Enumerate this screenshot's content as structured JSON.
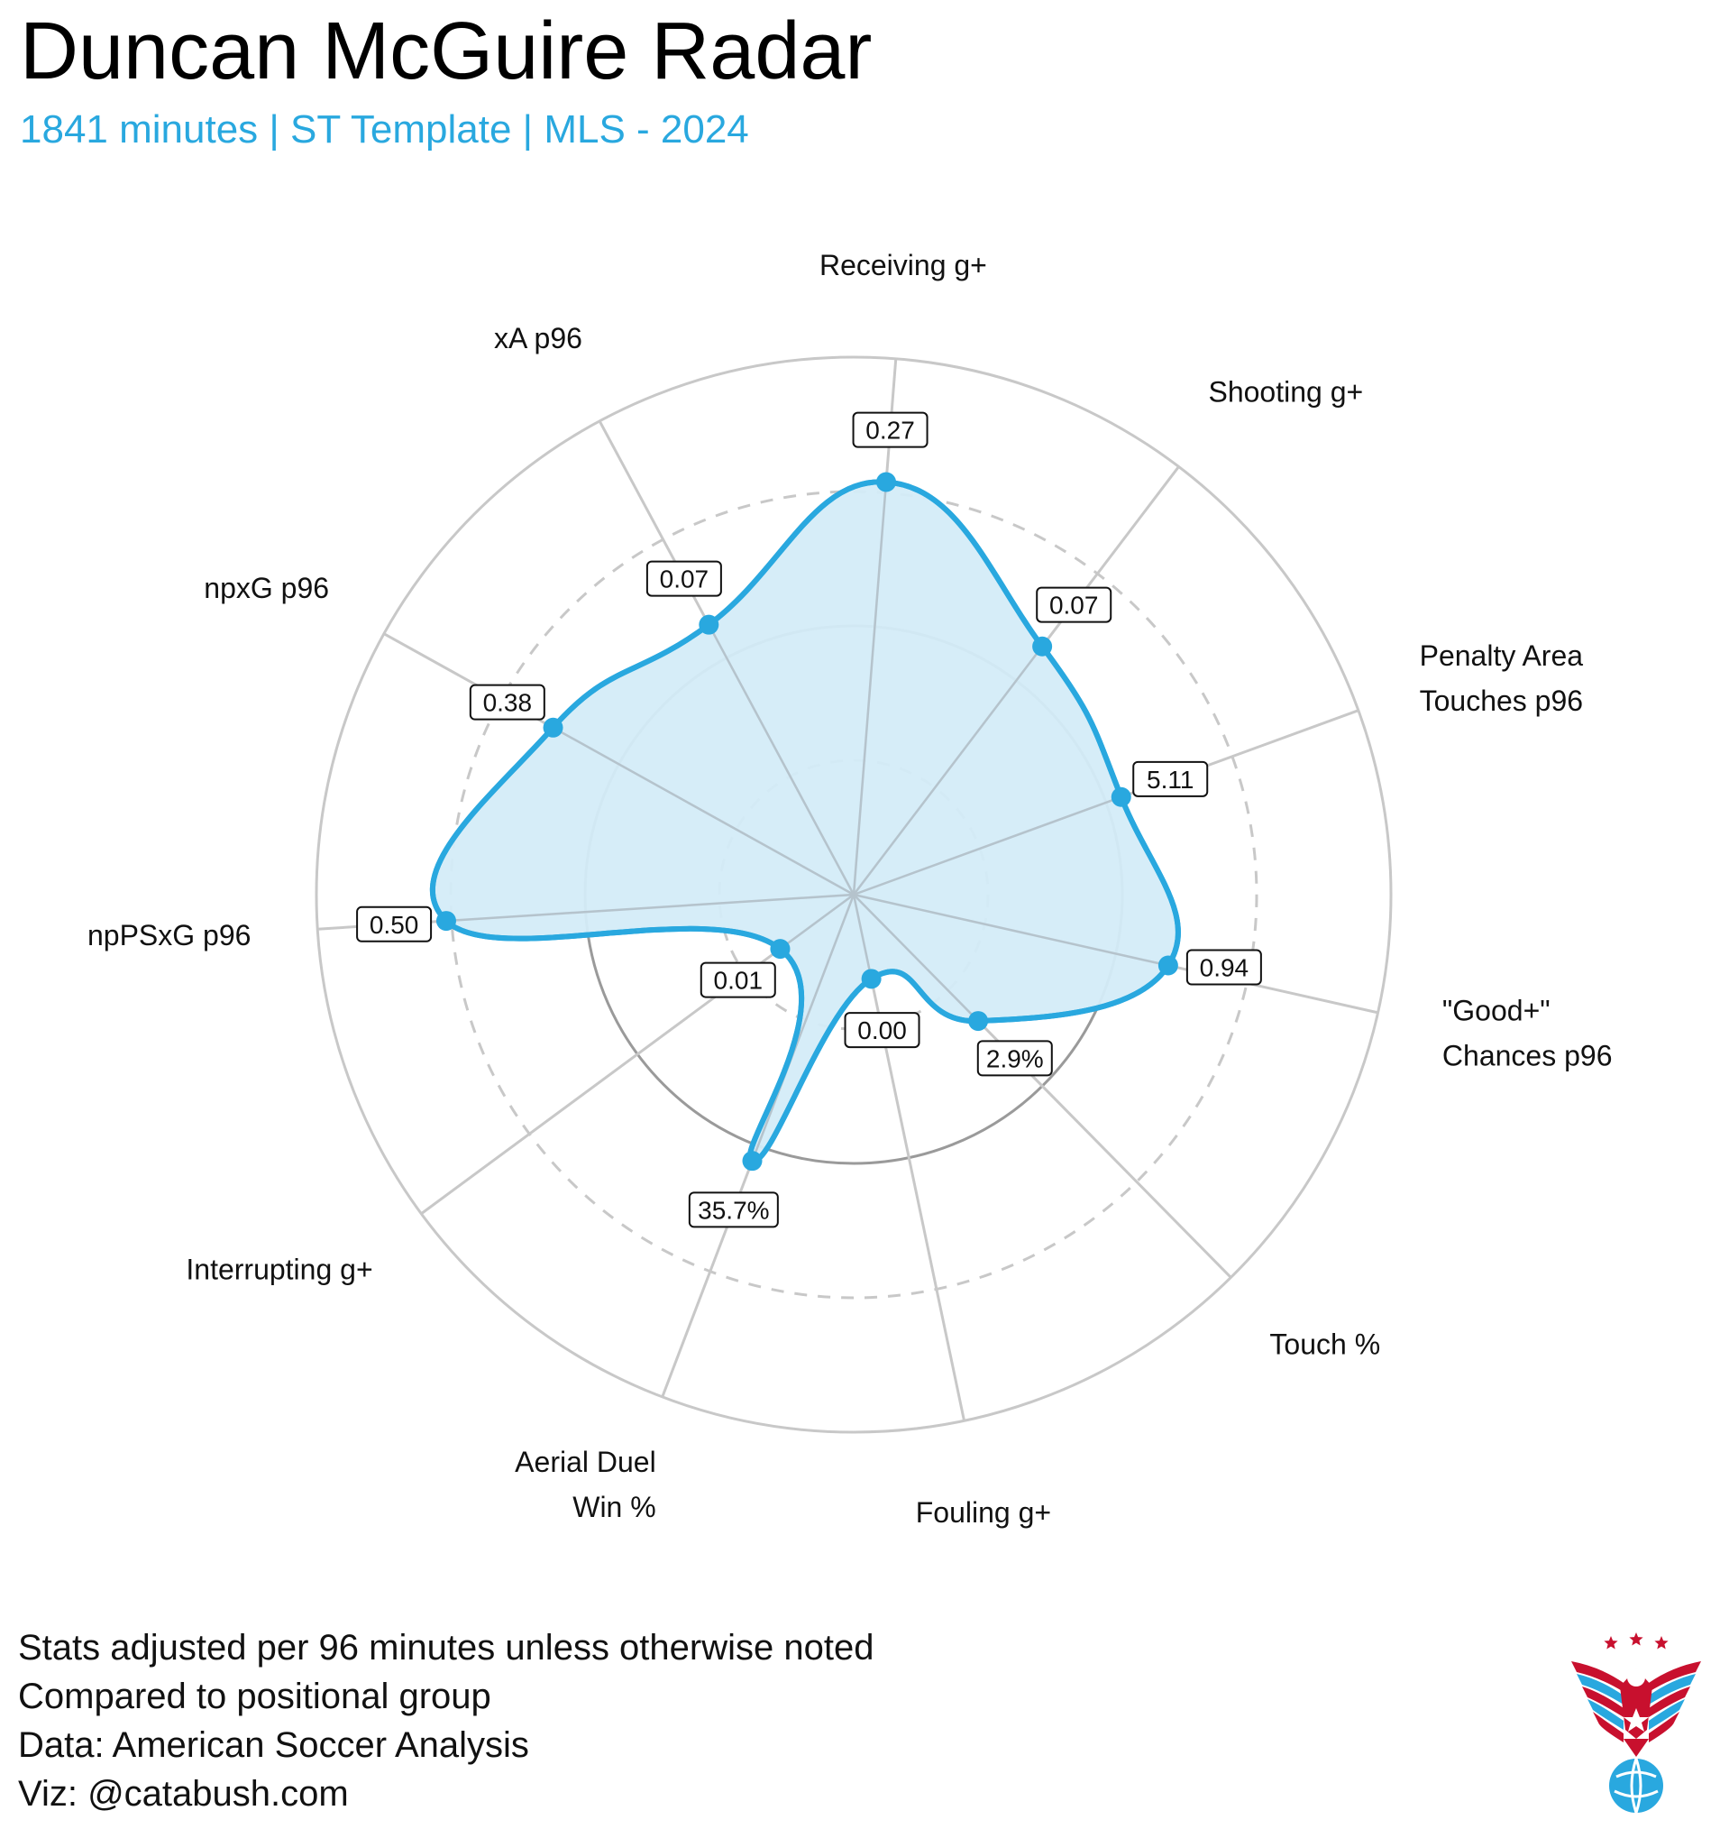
{
  "header": {
    "title": "Duncan McGuire Radar",
    "subtitle": "1841 minutes | ST Template | MLS - 2024"
  },
  "footer": {
    "lines": [
      "Stats adjusted per 96 minutes unless otherwise noted",
      "Compared to positional group",
      "Data: American Soccer Analysis",
      "Viz: @catabush.com"
    ]
  },
  "colors": {
    "accent": "#29a8df",
    "fill": "#d4ecf8",
    "ring": "#c8c8c8",
    "spoke": "#c8c8c8",
    "inner_ring": "#9a9a9a",
    "logo_red": "#c8102e",
    "logo_blue": "#29a8df"
  },
  "logo": {
    "icon": "eagle-soccer-ball-logo"
  },
  "chart_data": {
    "type": "radar",
    "scale": "percentile",
    "rlim": [
      0,
      100
    ],
    "rings": [
      25,
      50,
      75,
      100
    ],
    "axes": [
      {
        "label": [
          "Receiving g+"
        ],
        "value_label": "0.27",
        "percentile": 77
      },
      {
        "label": [
          "Shooting g+"
        ],
        "value_label": "0.07",
        "percentile": 58
      },
      {
        "label": [
          "Penalty Area",
          "Touches p96"
        ],
        "value_label": "5.11",
        "percentile": 53
      },
      {
        "label": [
          "\"Good+\"",
          "Chances p96"
        ],
        "value_label": "0.94",
        "percentile": 60
      },
      {
        "label": [
          "Touch %"
        ],
        "value_label": "2.9%",
        "percentile": 33
      },
      {
        "label": [
          "Fouling g+"
        ],
        "value_label": "0.00",
        "percentile": 16
      },
      {
        "label": [
          "Aerial Duel",
          "Win %"
        ],
        "value_label": "35.7%",
        "percentile": 53
      },
      {
        "label": [
          "Interrupting g+"
        ],
        "value_label": "0.01",
        "percentile": 17
      },
      {
        "label": [
          "npPSxG p96"
        ],
        "value_label": "0.50",
        "percentile": 76
      },
      {
        "label": [
          "npxG p96"
        ],
        "value_label": "0.38",
        "percentile": 64
      },
      {
        "label": [
          "xA p96"
        ],
        "value_label": "0.07",
        "percentile": 57
      }
    ]
  }
}
